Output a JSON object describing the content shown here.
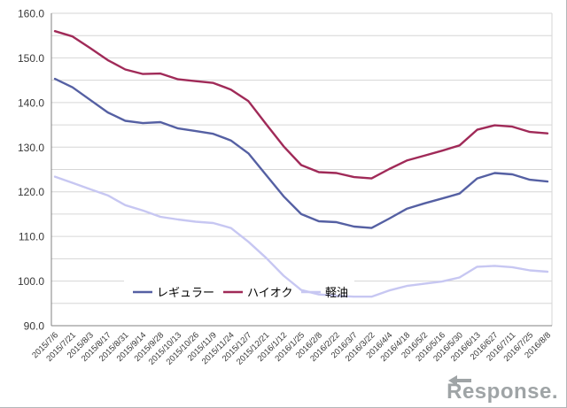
{
  "chart_data": {
    "type": "line",
    "title": "",
    "categories": [
      "2015/7/6",
      "2015/7/21",
      "2015/8/3",
      "2015/8/17",
      "2015/8/31",
      "2015/9/14",
      "2015/9/28",
      "2015/10/13",
      "2015/10/26",
      "2015/11/9",
      "2015/11/24",
      "2015/12/7",
      "2015/12/21",
      "2016/1/12",
      "2016/1/25",
      "2016/2/8",
      "2016/2/22",
      "2016/3/7",
      "2016/3/22",
      "2016/4/4",
      "2016/4/18",
      "2016/5/2",
      "2016/5/16",
      "2016/5/30",
      "2016/6/13",
      "2016/627",
      "2016/7/11",
      "2016/7/25",
      "2016/8/8"
    ],
    "series": [
      {
        "name": "レギュラー",
        "color": "#5560a3",
        "values": [
          145.3,
          143.4,
          140.6,
          137.8,
          135.9,
          135.4,
          135.6,
          134.2,
          133.6,
          133.0,
          131.5,
          128.6,
          123.8,
          119.0,
          115.0,
          113.4,
          113.2,
          112.2,
          111.9,
          114.0,
          116.2,
          117.4,
          118.5,
          119.6,
          123.0,
          124.2,
          123.9,
          122.7,
          122.3
        ]
      },
      {
        "name": "ハイオク",
        "color": "#a02a58",
        "values": [
          156.0,
          154.8,
          152.2,
          149.5,
          147.4,
          146.4,
          146.5,
          145.2,
          144.8,
          144.4,
          142.9,
          140.3,
          135.2,
          130.2,
          126.0,
          124.4,
          124.2,
          123.3,
          123.0,
          125.1,
          127.0,
          128.1,
          129.2,
          130.4,
          133.9,
          134.9,
          134.6,
          133.4,
          133.1
        ]
      },
      {
        "name": "軽油",
        "color": "#c7c7f2",
        "values": [
          123.4,
          122.0,
          120.6,
          119.2,
          117.0,
          115.8,
          114.4,
          113.8,
          113.3,
          113.0,
          111.9,
          108.8,
          105.2,
          101.2,
          98.0,
          97.0,
          96.7,
          96.5,
          96.5,
          97.9,
          98.9,
          99.4,
          99.9,
          100.8,
          103.2,
          103.4,
          103.1,
          102.4,
          102.1
        ]
      }
    ],
    "ylim": [
      90,
      160
    ],
    "grid": true,
    "grid_step": 5,
    "y_ticks": [
      {
        "v": 160,
        "label": "160.0"
      },
      {
        "v": 150,
        "label": "150.0"
      },
      {
        "v": 140,
        "label": "140.0"
      },
      {
        "v": 130,
        "label": "130.0"
      },
      {
        "v": 120,
        "label": "120.0"
      },
      {
        "v": 110,
        "label": "110.0"
      },
      {
        "v": 100,
        "label": "100.0"
      },
      {
        "v": 90,
        "label": "90.0"
      }
    ],
    "legend_position": "inside-bottom-center",
    "colors": {
      "axis": "#808080",
      "grid": "#d6d6d6",
      "plot_border": "#d6d6d6",
      "tick_text": "#383838",
      "legend_text": "#000000",
      "background": "#ffffff"
    }
  },
  "legend": {
    "items": [
      {
        "label": "レギュラー"
      },
      {
        "label": "ハイオク"
      },
      {
        "label": "軽油"
      }
    ]
  },
  "logo": {
    "text": "Response.",
    "color": "#9fa4a6"
  }
}
